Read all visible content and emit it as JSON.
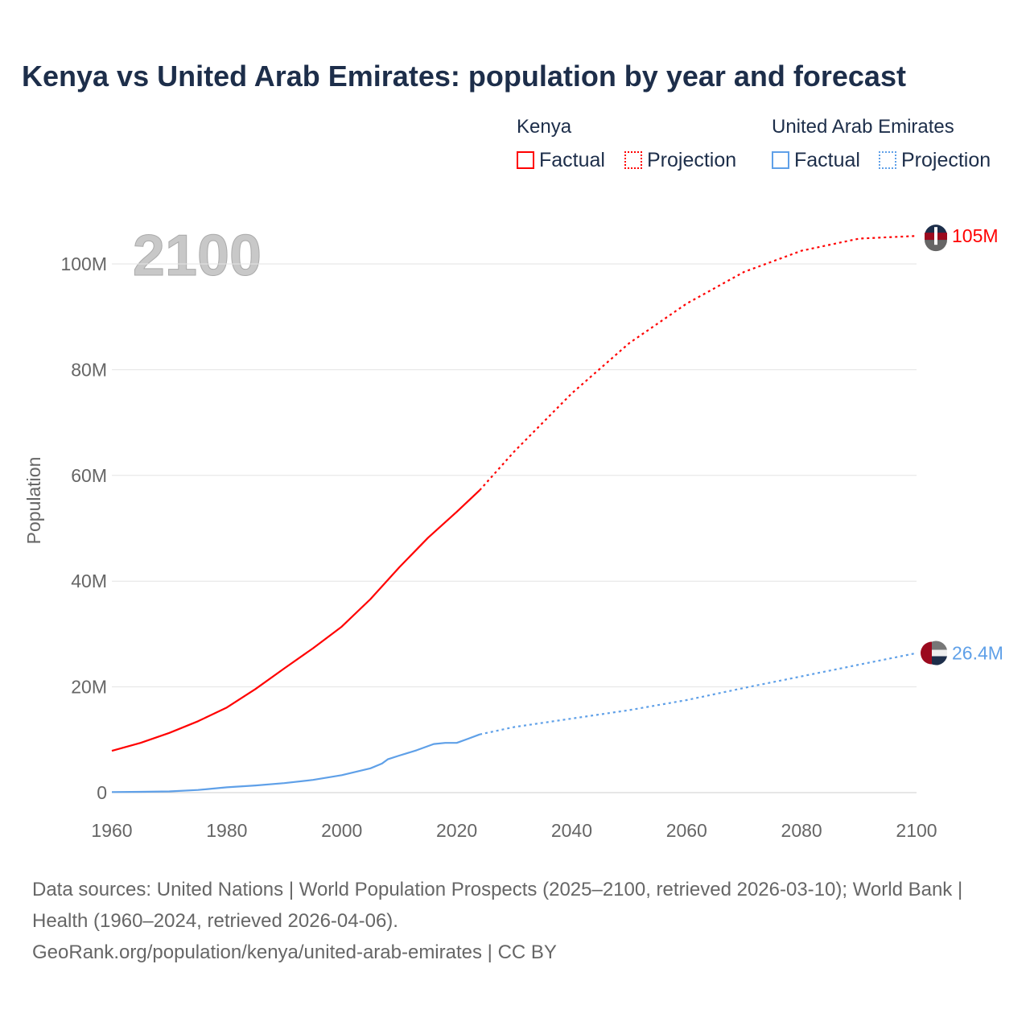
{
  "title": "Kenya vs United Arab Emirates: population by year and forecast",
  "legend": {
    "groups": [
      {
        "name": "Kenya",
        "factual": "Factual",
        "projection": "Projection",
        "color": "#ff0000"
      },
      {
        "name": "United Arab Emirates",
        "factual": "Factual",
        "projection": "Projection",
        "color": "#5fa0e8"
      }
    ]
  },
  "year_label": "2100",
  "source": {
    "line1": "Data sources: United Nations | World Population Prospects (2025–2100, retrieved 2026-03-10); World Bank | Health (1960–2024, retrieved 2026-04-06).",
    "line2": "GeoRank.org/population/kenya/united-arab-emirates | CC BY"
  },
  "chart_data": {
    "type": "line",
    "title": "Kenya vs United Arab Emirates: population by year and forecast",
    "xlabel": "",
    "ylabel": "Population",
    "xlim": [
      1960,
      2100
    ],
    "ylim": [
      0,
      110
    ],
    "x_ticks": [
      1960,
      1980,
      2000,
      2020,
      2040,
      2060,
      2080,
      2100
    ],
    "y_ticks": [
      0,
      20,
      40,
      60,
      80,
      100
    ],
    "y_tick_labels": [
      "0",
      "20M",
      "40M",
      "60M",
      "80M",
      "100M"
    ],
    "x_tick_labels": [
      "1960",
      "1980",
      "2000",
      "2020",
      "2040",
      "2060",
      "2080",
      "2100"
    ],
    "grid": true,
    "series": [
      {
        "name": "Kenya",
        "color": "#ff0000",
        "end_label": "105M",
        "factual": {
          "x": [
            1960,
            1965,
            1970,
            1975,
            1980,
            1985,
            1990,
            1995,
            2000,
            2005,
            2010,
            2015,
            2020,
            2024
          ],
          "y": [
            7.9,
            9.4,
            11.3,
            13.5,
            16.1,
            19.6,
            23.5,
            27.3,
            31.4,
            36.6,
            42.6,
            48.2,
            53.1,
            57.2
          ]
        },
        "projection": {
          "x": [
            2024,
            2030,
            2040,
            2050,
            2060,
            2070,
            2080,
            2090,
            2100
          ],
          "y": [
            57.2,
            64.5,
            75.5,
            85,
            92.5,
            98.5,
            102.5,
            104.8,
            105.3
          ]
        }
      },
      {
        "name": "United Arab Emirates",
        "color": "#5fa0e8",
        "end_label": "26.4M",
        "factual": {
          "x": [
            1960,
            1965,
            1970,
            1975,
            1980,
            1985,
            1990,
            1995,
            2000,
            2005,
            2007,
            2008,
            2010,
            2013,
            2016,
            2018,
            2020,
            2022,
            2024
          ],
          "y": [
            0.1,
            0.15,
            0.23,
            0.5,
            1.0,
            1.35,
            1.8,
            2.4,
            3.3,
            4.6,
            5.5,
            6.3,
            7.0,
            8.0,
            9.2,
            9.4,
            9.4,
            10.2,
            11.0
          ]
        },
        "projection": {
          "x": [
            2024,
            2030,
            2040,
            2050,
            2060,
            2070,
            2080,
            2090,
            2100
          ],
          "y": [
            11.0,
            12.4,
            14.0,
            15.6,
            17.5,
            19.8,
            22.0,
            24.2,
            26.4
          ]
        }
      }
    ]
  }
}
